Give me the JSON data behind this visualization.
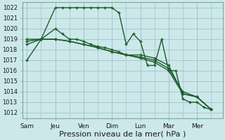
{
  "background_color": "#cde8ea",
  "grid_color": "#a0c4c8",
  "line_color": "#1a5c2a",
  "xlabel": "Pression niveau de la mer( hPa )",
  "xlabel_fontsize": 8,
  "ylim": [
    1011.5,
    1022.5
  ],
  "yticks": [
    1012,
    1013,
    1014,
    1015,
    1016,
    1017,
    1018,
    1019,
    1020,
    1021,
    1022
  ],
  "ytick_fontsize": 6,
  "xtick_labels": [
    "Sam",
    "Jeu",
    "Ven",
    "Dim",
    "Lun",
    "Mar",
    "Mer"
  ],
  "xtick_positions": [
    0,
    2,
    4,
    6,
    8,
    10,
    12
  ],
  "xtick_fontsize": 6.5,
  "xlim": [
    -0.3,
    13.8
  ],
  "series": [
    {
      "x": [
        0,
        1,
        2,
        2.5,
        3,
        3.5,
        4,
        4.5,
        5,
        5.5,
        6,
        6.5,
        7,
        7.5,
        8,
        8.5,
        9,
        9.5,
        10,
        10.5,
        11,
        11.5,
        12,
        12.5,
        13
      ],
      "y": [
        1017,
        1019,
        1022,
        1022,
        1022,
        1022,
        1022,
        1022,
        1022,
        1022,
        1022,
        1021.5,
        1018.5,
        1019.5,
        1018.8,
        1016.5,
        1016.5,
        1019,
        1016,
        1016,
        1013.3,
        1013,
        1013,
        1012.5,
        1012.3
      ]
    },
    {
      "x": [
        0,
        1,
        2,
        2.5,
        3,
        3.5,
        4,
        4.5,
        5,
        5.5,
        6,
        6.5,
        7,
        8,
        9,
        10,
        11,
        12,
        13
      ],
      "y": [
        1018.5,
        1019,
        1020,
        1019.5,
        1019,
        1019,
        1018.8,
        1018.5,
        1018.3,
        1018.2,
        1018,
        1017.8,
        1017.5,
        1017.5,
        1017.2,
        1016.5,
        1013.8,
        1013.5,
        1012.3
      ]
    },
    {
      "x": [
        0,
        1,
        2,
        3,
        4,
        5,
        6,
        7,
        8,
        9,
        10,
        11,
        12,
        13
      ],
      "y": [
        1018.8,
        1019,
        1019,
        1018.8,
        1018.5,
        1018.2,
        1017.8,
        1017.5,
        1017.3,
        1017.0,
        1016.2,
        1014.0,
        1013.5,
        1012.3
      ]
    },
    {
      "x": [
        0,
        1,
        2,
        3,
        4,
        5,
        6,
        7,
        8,
        9,
        10,
        11,
        12,
        13
      ],
      "y": [
        1019.0,
        1019.0,
        1019.0,
        1018.8,
        1018.5,
        1018.2,
        1017.8,
        1017.5,
        1017.2,
        1016.8,
        1016.0,
        1013.8,
        1013.5,
        1012.3
      ]
    }
  ]
}
